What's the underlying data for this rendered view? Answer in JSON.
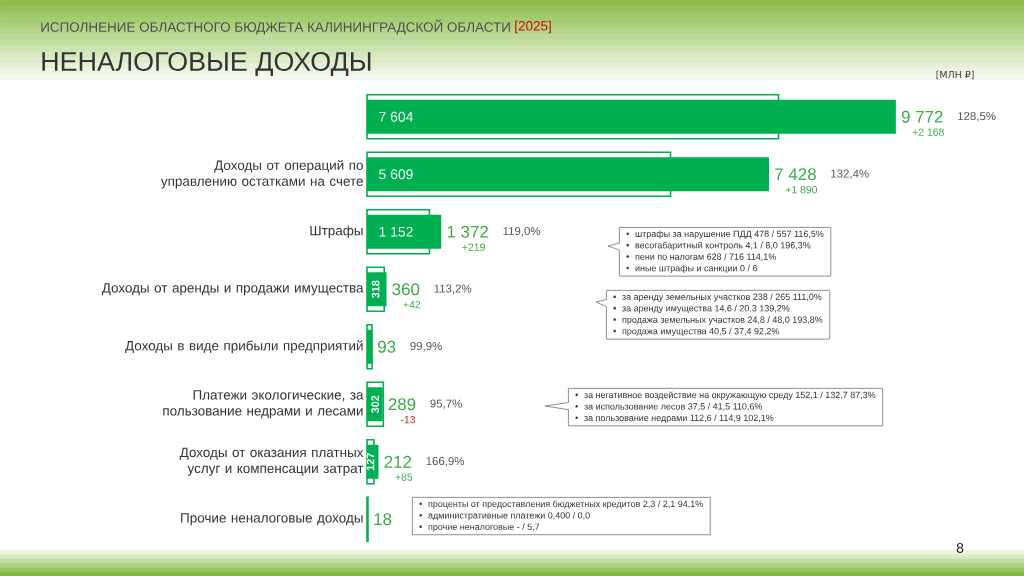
{
  "chart_data": {
    "type": "bar",
    "orientation": "horizontal",
    "title": "НЕНАЛОГОВЫЕ ДОХОДЫ",
    "subtitle": "ИСПОЛНЕНИЕ ОБЛАСТНОГО БЮДЖЕТА КАЛИНИНГРАДСКОЙ ОБЛАСТИ",
    "categories": [
      null,
      "Доходы от операций по управлению остатками на счете",
      "Штрафы",
      "Доходы от аренды и продажи имущества",
      "Доходы в виде прибыли предприятий",
      "Платежи экологические, за пользование недрами и лесами",
      "Доходы от оказания платных услуг и компенсации затрат",
      "Прочие неналоговые доходы"
    ],
    "series": [
      {
        "color": "#00b050",
        "values": [
          7604,
          5609,
          1152,
          318,
          93,
          302,
          127,
          18
        ],
        "value_labels": [
          "7 604",
          "5 609",
          "1 152",
          "318",
          null,
          "302",
          "127",
          null
        ]
      },
      {
        "color": "#00b050",
        "values": [
          9772,
          7428,
          1372,
          360,
          93,
          289,
          212,
          18
        ],
        "value_labels": [
          "9 772",
          "7 428",
          "1 372",
          "360",
          "93",
          "289",
          "212",
          "18"
        ]
      }
    ],
    "tick_labels": "y",
    "annotations": [
      "[МЛН ₽]",
      "[2025]",
      "128,5%",
      "+2 168",
      "132,4%",
      "+1 890",
      "119,0%",
      "+219",
      "113,2%",
      "+42",
      "99,9%",
      "95,7%",
      "-13",
      "166,9%",
      "+85",
      "штрафы за нарушение ПДД  478 / 557  116,5%",
      "весогабаритный контроль  4,1 / 8,0  196,3%",
      "пени по налогам  628 / 716  114,1%",
      "иные штрафы и санкции  0 / 6",
      "за аренду земельных участков  238 / 265  111,0%",
      "за аренду имущества  14,6 / 20,3  139,2%",
      "продажа  земельных участков  24,8 / 48,0  193,8%",
      "продажа имущества  40,5 / 37,4  92,2%",
      "за негативное воздействие на окружающую среду  152,1 / 132,7  87,3%",
      "за использование лесов  37,5 / 41,5  110,6%",
      "за пользование недрами  112,6 / 114,9  102,1%",
      "проценты от предоставления бюджетных кредитов  2,3 / 2,1  94,1%",
      "административные платежи  0,400 / 0,0",
      "прочие неналоговые  - / 5,7",
      "8"
    ]
  }
}
